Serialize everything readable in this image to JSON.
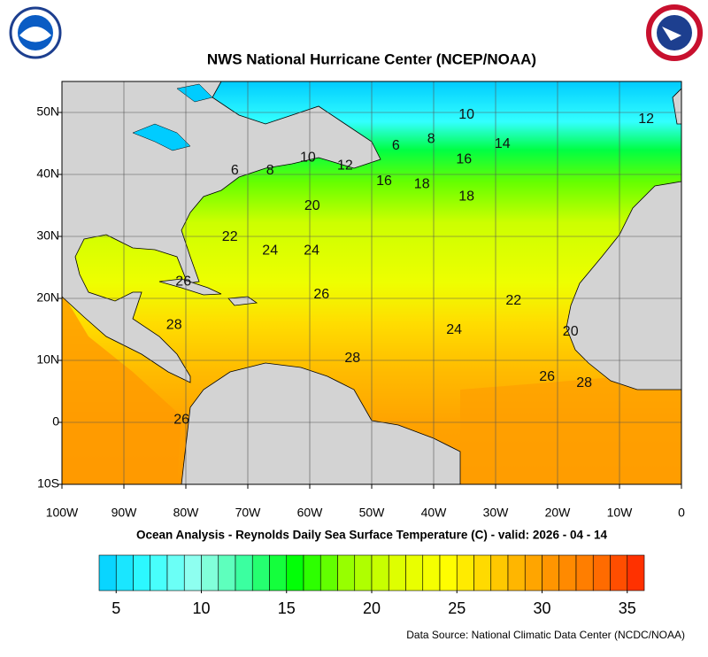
{
  "chart_data": {
    "type": "map",
    "title": "NWS National Hurricane Center (NCEP/NOAA)",
    "subtitle": "Ocean Analysis - Reynolds Daily Sea Surface Temperature (C) - valid: 2026 - 04 - 14",
    "source": "Data Source: National Climatic Data Center (NCDC/NOAA)",
    "xlim": [
      -100,
      0
    ],
    "ylim": [
      -10,
      55
    ],
    "xticks": [
      {
        "value": -100,
        "label": "100W"
      },
      {
        "value": -90,
        "label": "90W"
      },
      {
        "value": -80,
        "label": "80W"
      },
      {
        "value": -70,
        "label": "70W"
      },
      {
        "value": -60,
        "label": "60W"
      },
      {
        "value": -50,
        "label": "50W"
      },
      {
        "value": -40,
        "label": "40W"
      },
      {
        "value": -30,
        "label": "30W"
      },
      {
        "value": -20,
        "label": "20W"
      },
      {
        "value": -10,
        "label": "10W"
      },
      0
    ],
    "yticks": [
      {
        "value": -10,
        "label": "10S"
      },
      0,
      {
        "value": 10,
        "label": "10N"
      },
      {
        "value": 20,
        "label": "20N"
      },
      {
        "value": 30,
        "label": "30N"
      },
      {
        "value": 40,
        "label": "40N"
      },
      {
        "value": 50,
        "label": "50N"
      }
    ],
    "grid": true,
    "contour_labels": [
      {
        "value": 10,
        "lon": -34.7,
        "lat": 49.6
      },
      {
        "value": 12,
        "lon": -5.7,
        "lat": 48.9
      },
      {
        "value": 8,
        "lon": -40.4,
        "lat": 45.7
      },
      {
        "value": 6,
        "lon": -46.1,
        "lat": 44.6
      },
      {
        "value": 14,
        "lon": -28.9,
        "lat": 44.9
      },
      {
        "value": 16,
        "lon": -35.1,
        "lat": 42.4
      },
      {
        "value": 6,
        "lon": -72.1,
        "lat": 40.6
      },
      {
        "value": 8,
        "lon": -66.4,
        "lat": 40.6
      },
      {
        "value": 10,
        "lon": -60.3,
        "lat": 42.7
      },
      {
        "value": 12,
        "lon": -54.3,
        "lat": 41.4
      },
      {
        "value": 16,
        "lon": -48.0,
        "lat": 38.9
      },
      {
        "value": 18,
        "lon": -41.9,
        "lat": 38.4
      },
      {
        "value": 18,
        "lon": -34.7,
        "lat": 36.4
      },
      {
        "value": 20,
        "lon": -59.6,
        "lat": 34.9
      },
      {
        "value": 22,
        "lon": -72.9,
        "lat": 29.9
      },
      {
        "value": 24,
        "lon": -66.4,
        "lat": 27.7
      },
      {
        "value": 24,
        "lon": -59.7,
        "lat": 27.7
      },
      {
        "value": 26,
        "lon": -80.4,
        "lat": 22.7
      },
      {
        "value": 26,
        "lon": -58.1,
        "lat": 20.6
      },
      {
        "value": 22,
        "lon": -27.1,
        "lat": 19.6
      },
      {
        "value": 28,
        "lon": -81.9,
        "lat": 15.7
      },
      {
        "value": 24,
        "lon": -36.7,
        "lat": 14.9
      },
      {
        "value": 20,
        "lon": -17.9,
        "lat": 14.6
      },
      {
        "value": 28,
        "lon": -53.1,
        "lat": 10.3
      },
      {
        "value": 26,
        "lon": -21.7,
        "lat": 7.3
      },
      {
        "value": 28,
        "lon": -15.7,
        "lat": 6.3
      },
      {
        "value": 26,
        "lon": -80.7,
        "lat": 0.4
      }
    ],
    "colorbar": {
      "lim": [
        4,
        36
      ],
      "ticks": [
        5,
        10,
        15,
        20,
        25,
        30,
        35
      ],
      "colors": [
        "#00ccff",
        "#33ffff",
        "#99ffee",
        "#33ff99",
        "#00ff00",
        "#99ff00",
        "#ddff00",
        "#ffff00",
        "#ffcc00",
        "#ff9900",
        "#ff7700",
        "#ff2200"
      ]
    }
  }
}
